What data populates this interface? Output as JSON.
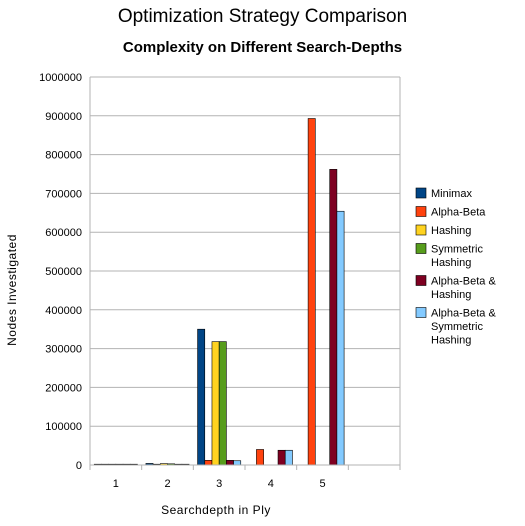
{
  "chart_data": {
    "type": "bar",
    "title": "Optimization Strategy Comparison",
    "subtitle": "Complexity on Different Search-Depths",
    "xlabel": "Searchdepth in Ply",
    "ylabel": "Nodes Investigated",
    "categories": [
      "1",
      "2",
      "3",
      "4",
      "5",
      ""
    ],
    "ylim": [
      0,
      1000000
    ],
    "yticks": [
      "0",
      "100000",
      "200000",
      "300000",
      "400000",
      "500000",
      "600000",
      "700000",
      "800000",
      "900000",
      "1000000"
    ],
    "grid": true,
    "legend_position": "right",
    "series": [
      {
        "name": "Minimax",
        "values": [
          1,
          4000,
          350000,
          null,
          null,
          null
        ],
        "color": "#004586"
      },
      {
        "name": "Alpha-Beta",
        "values": [
          1,
          2000,
          12000,
          40000,
          893000,
          null
        ],
        "color": "#ff420e"
      },
      {
        "name": "Hashing",
        "values": [
          1,
          3500,
          318000,
          null,
          null,
          null
        ],
        "color": "#ffd320"
      },
      {
        "name": "Symmetric Hashing",
        "values": [
          1,
          3000,
          318000,
          null,
          null,
          null
        ],
        "color": "#579d1c"
      },
      {
        "name": "Alpha-Beta & Hashing",
        "values": [
          1,
          1500,
          12000,
          38000,
          762000,
          null
        ],
        "color": "#7e0021"
      },
      {
        "name": "Alpha-Beta & Symmetric Hashing",
        "values": [
          1,
          1500,
          11000,
          38000,
          654000,
          null
        ],
        "color": "#83caff"
      }
    ],
    "legend_lines": [
      [
        "Minimax"
      ],
      [
        "Alpha-Beta"
      ],
      [
        "Hashing"
      ],
      [
        "Symmetric",
        "Hashing"
      ],
      [
        "Alpha-Beta &",
        "Hashing"
      ],
      [
        "Alpha-Beta &",
        "Symmetric",
        "Hashing"
      ]
    ]
  }
}
